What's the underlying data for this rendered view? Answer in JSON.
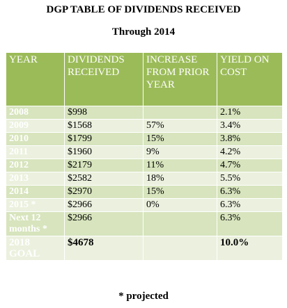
{
  "header": {
    "title": "DGP TABLE OF DIVIDENDS RECEIVED",
    "subtitle": "Through 2014"
  },
  "table": {
    "columns": [
      "YEAR",
      "DIVIDENDS RECEIVED",
      "INCREASE FROM PRIOR YEAR",
      "YIELD ON COST"
    ],
    "rows": [
      [
        "2008",
        "$998",
        null,
        "2.1%"
      ],
      [
        "2009",
        "$1568",
        "57%",
        "3.4%"
      ],
      [
        "2010",
        "$1799",
        "15%",
        "3.8%"
      ],
      [
        "2011",
        "$1960",
        "9%",
        "4.2%"
      ],
      [
        "2012",
        "$2179",
        "11%",
        "4.7%"
      ],
      [
        "2013",
        "$2582",
        "18%",
        "5.5%"
      ],
      [
        "2014",
        "$2970",
        "15%",
        "6.3%"
      ],
      [
        "2015 *",
        "$2966",
        "0%",
        "6.3%"
      ],
      [
        "Next 12 months *",
        "$2966",
        null,
        "6.3%"
      ],
      [
        "2018 GOAL",
        "$4678",
        null,
        "10.0%"
      ]
    ]
  },
  "footnote": "* projected"
}
